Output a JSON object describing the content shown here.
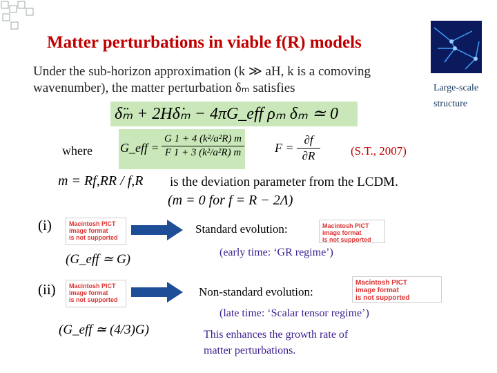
{
  "header": {
    "title": "Matter perturbations in viable f(R) models"
  },
  "intro": [
    "Under the sub-horizon approximation (k ≫ aH, k is a comoving",
    "wavenumber), the matter perturbation δₘ satisfies"
  ],
  "image_caption": [
    "Large-scale",
    "structure"
  ],
  "equation": "δ̈ₘ + 2Hδ̇ₘ − 4πG_eff ρₘ δₘ ≃ 0",
  "where": "where",
  "geff": {
    "lhs": "G_eff =",
    "numerator": "G   1 + 4 (k²/a²R) m",
    "denominator": "F   1 + 3 (k²/a²R) m"
  },
  "f_def": {
    "lhs": "F =",
    "numerator": "∂f",
    "denominator": "∂R"
  },
  "reference": "(S.T., 2007)",
  "m_def": "m = Rf,RR / f,R",
  "m_desc": "is the deviation parameter from the LCDM.",
  "m_zero": "(m = 0    for    f = R − 2Λ)",
  "pict_notice": [
    "Macintosh PICT",
    "image format",
    "is not supported"
  ],
  "cases": [
    {
      "label": "(i)",
      "limit": "(G_eff ≃ G)",
      "evolution": "Standard evolution:",
      "regime": "(early time: ‘GR regime’)"
    },
    {
      "label": "(ii)",
      "limit": "(G_eff ≃ (4/3)G)",
      "evolution": "Non-standard evolution:",
      "regime": "(late time: ‘Scalar tensor regime’)"
    }
  ],
  "conclusion": [
    "This enhances the growth rate of",
    "matter perturbations."
  ]
}
